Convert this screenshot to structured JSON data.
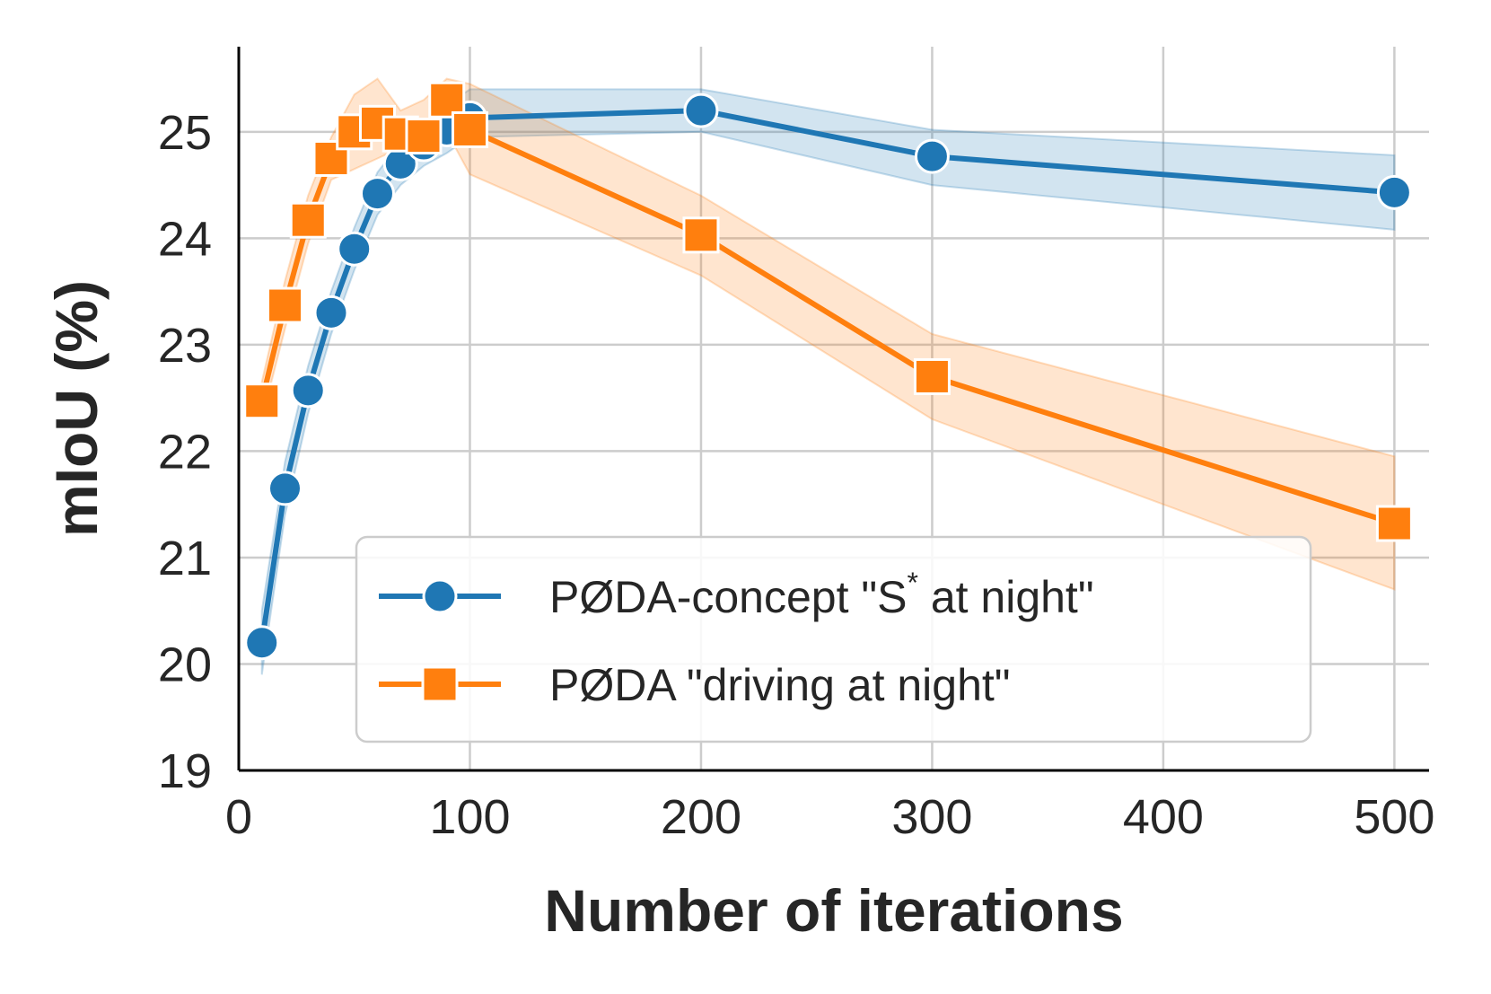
{
  "chart_data": {
    "type": "line",
    "title": "",
    "xlabel": "Number of iterations",
    "ylabel": "mIoU (%)",
    "xlim": [
      0,
      515
    ],
    "ylim": [
      19,
      25.8
    ],
    "xticks": [
      0,
      100,
      200,
      300,
      400,
      500
    ],
    "yticks": [
      19,
      20,
      21,
      22,
      23,
      24,
      25
    ],
    "xtick_labels": [
      "0",
      "100",
      "200",
      "300",
      "400",
      "500"
    ],
    "ytick_labels": [
      "19",
      "20",
      "21",
      "22",
      "23",
      "24",
      "25"
    ],
    "grid": true,
    "legend_position": "lower-center",
    "series": [
      {
        "name": "PØDA-concept \"S* at night\"",
        "legend_prefix": "PØDA-concept \"S",
        "legend_sup": "*",
        "legend_suffix": " at night\"",
        "color": "#1f77b4",
        "marker": "circle",
        "x": [
          10,
          20,
          30,
          40,
          50,
          60,
          70,
          80,
          90,
          100,
          200,
          300,
          500
        ],
        "y": [
          20.2,
          21.65,
          22.57,
          23.3,
          23.9,
          24.42,
          24.7,
          24.88,
          25.02,
          25.13,
          25.2,
          24.77,
          24.43
        ],
        "band_low": [
          19.9,
          21.4,
          22.35,
          23.1,
          23.7,
          24.22,
          24.5,
          24.68,
          24.8,
          24.95,
          25.0,
          24.5,
          24.08
        ],
        "band_high": [
          20.5,
          21.9,
          22.8,
          23.5,
          24.1,
          24.62,
          24.9,
          25.08,
          25.25,
          25.4,
          25.4,
          25.02,
          24.78
        ]
      },
      {
        "name": "PØDA \"driving at night\"",
        "legend_prefix": "PØDA \"driving at night\"",
        "legend_sup": "",
        "legend_suffix": "",
        "color": "#ff7f0e",
        "marker": "square",
        "x": [
          10,
          20,
          30,
          40,
          50,
          60,
          70,
          80,
          90,
          100,
          200,
          300,
          500
        ],
        "y": [
          22.47,
          23.37,
          24.17,
          24.75,
          25.0,
          25.08,
          24.98,
          24.96,
          25.3,
          25.02,
          24.03,
          22.7,
          21.32
        ],
        "band_low": [
          22.3,
          23.15,
          23.95,
          24.55,
          24.65,
          24.75,
          24.85,
          24.8,
          25.0,
          24.6,
          23.65,
          22.3,
          20.7
        ],
        "band_high": [
          22.65,
          23.6,
          24.4,
          24.95,
          25.35,
          25.5,
          25.2,
          25.3,
          25.5,
          25.45,
          24.4,
          23.1,
          21.95
        ]
      }
    ]
  }
}
